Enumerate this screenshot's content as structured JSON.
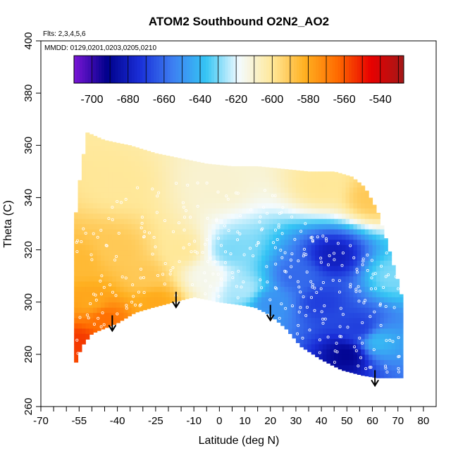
{
  "chart_data": {
    "type": "heatmap",
    "title": "ATOM2 Southbound O2N2_AO2",
    "subtitle_flights": "Flts: 2,3,4,5,6",
    "subtitle_dates": "MMDD: 0129,0201,0203,0205,0210",
    "xlabel": "Latitude (deg N)",
    "ylabel": "Theta (C)",
    "xlim": [
      -70,
      85
    ],
    "ylim": [
      260,
      400
    ],
    "x_ticks": [
      -70,
      -55,
      -40,
      -25,
      -10,
      0,
      10,
      20,
      30,
      40,
      50,
      60,
      70,
      80
    ],
    "x_tick_labels": [
      "-70",
      "-55",
      "-40",
      "-25",
      "-10",
      "0",
      "10",
      "20",
      "30",
      "40",
      "50",
      "60",
      "70",
      "80"
    ],
    "y_ticks": [
      260,
      280,
      300,
      320,
      340,
      360,
      380,
      400
    ],
    "y_tick_labels": [
      "260",
      "280",
      "300",
      "320",
      "340",
      "360",
      "380",
      "400"
    ],
    "colorbar": {
      "range": [
        -710,
        -527
      ],
      "ticks": [
        -700,
        -680,
        -660,
        -640,
        -620,
        -600,
        -580,
        -560,
        -540
      ],
      "tick_labels": [
        "-700",
        "-680",
        "-660",
        "-640",
        "-620",
        "-600",
        "-580",
        "-560",
        "-540"
      ],
      "colors": [
        "#7a16d6",
        "#00008b",
        "#1a2fd8",
        "#3d7ff2",
        "#35c5f4",
        "#f3fbff",
        "#ffe89a",
        "#ffb020",
        "#ff6a00",
        "#e80000",
        "#a31818"
      ]
    },
    "lower_boundary": [
      [
        -57,
        275
      ],
      [
        -54,
        283
      ],
      [
        -50,
        288
      ],
      [
        -45,
        290
      ],
      [
        -40,
        292
      ],
      [
        -33,
        296
      ],
      [
        -26,
        298
      ],
      [
        -18,
        300
      ],
      [
        -10,
        302
      ],
      [
        0,
        300
      ],
      [
        8,
        299
      ],
      [
        14,
        298
      ],
      [
        20,
        295
      ],
      [
        26,
        290
      ],
      [
        32,
        283
      ],
      [
        40,
        278
      ],
      [
        48,
        274
      ],
      [
        56,
        272
      ],
      [
        62,
        271
      ],
      [
        72,
        271
      ]
    ],
    "upper_boundary": [
      [
        -57,
        328
      ],
      [
        -55,
        345
      ],
      [
        -52,
        365
      ],
      [
        -45,
        362
      ],
      [
        -35,
        360
      ],
      [
        -25,
        357
      ],
      [
        -15,
        355
      ],
      [
        -5,
        353
      ],
      [
        5,
        352
      ],
      [
        15,
        352
      ],
      [
        25,
        351
      ],
      [
        35,
        350
      ],
      [
        45,
        350
      ],
      [
        52,
        348
      ],
      [
        57,
        344
      ],
      [
        62,
        335
      ],
      [
        66,
        322
      ],
      [
        70,
        308
      ],
      [
        72,
        300
      ]
    ],
    "fields": [
      {
        "lat": -55,
        "theta": 285,
        "value": -555
      },
      {
        "lat": -50,
        "theta": 300,
        "value": -580
      },
      {
        "lat": -45,
        "theta": 294,
        "value": -565
      },
      {
        "lat": -40,
        "theta": 320,
        "value": -590
      },
      {
        "lat": -30,
        "theta": 310,
        "value": -590
      },
      {
        "lat": -25,
        "theta": 300,
        "value": -580
      },
      {
        "lat": -15,
        "theta": 320,
        "value": -600
      },
      {
        "lat": -5,
        "theta": 310,
        "value": -615
      },
      {
        "lat": 5,
        "theta": 320,
        "value": -630
      },
      {
        "lat": 10,
        "theta": 305,
        "value": -625
      },
      {
        "lat": 20,
        "theta": 300,
        "value": -650
      },
      {
        "lat": 30,
        "theta": 310,
        "value": -660
      },
      {
        "lat": 40,
        "theta": 300,
        "value": -670
      },
      {
        "lat": 45,
        "theta": 318,
        "value": -680
      },
      {
        "lat": 55,
        "theta": 290,
        "value": -670
      },
      {
        "lat": 50,
        "theta": 280,
        "value": -690
      },
      {
        "lat": 62,
        "theta": 285,
        "value": -640
      },
      {
        "lat": 68,
        "theta": 310,
        "value": -630
      },
      {
        "lat": -40,
        "theta": 345,
        "value": -600
      },
      {
        "lat": 0,
        "theta": 345,
        "value": -610
      },
      {
        "lat": 40,
        "theta": 345,
        "value": -600
      },
      {
        "lat": 60,
        "theta": 340,
        "value": -590
      },
      {
        "lat": -55,
        "theta": 315,
        "value": -585
      }
    ],
    "arrows": [
      {
        "lat": -42,
        "theta": 289
      },
      {
        "lat": -17,
        "theta": 298
      },
      {
        "lat": 20,
        "theta": 293
      },
      {
        "lat": 61,
        "theta": 268
      }
    ]
  }
}
